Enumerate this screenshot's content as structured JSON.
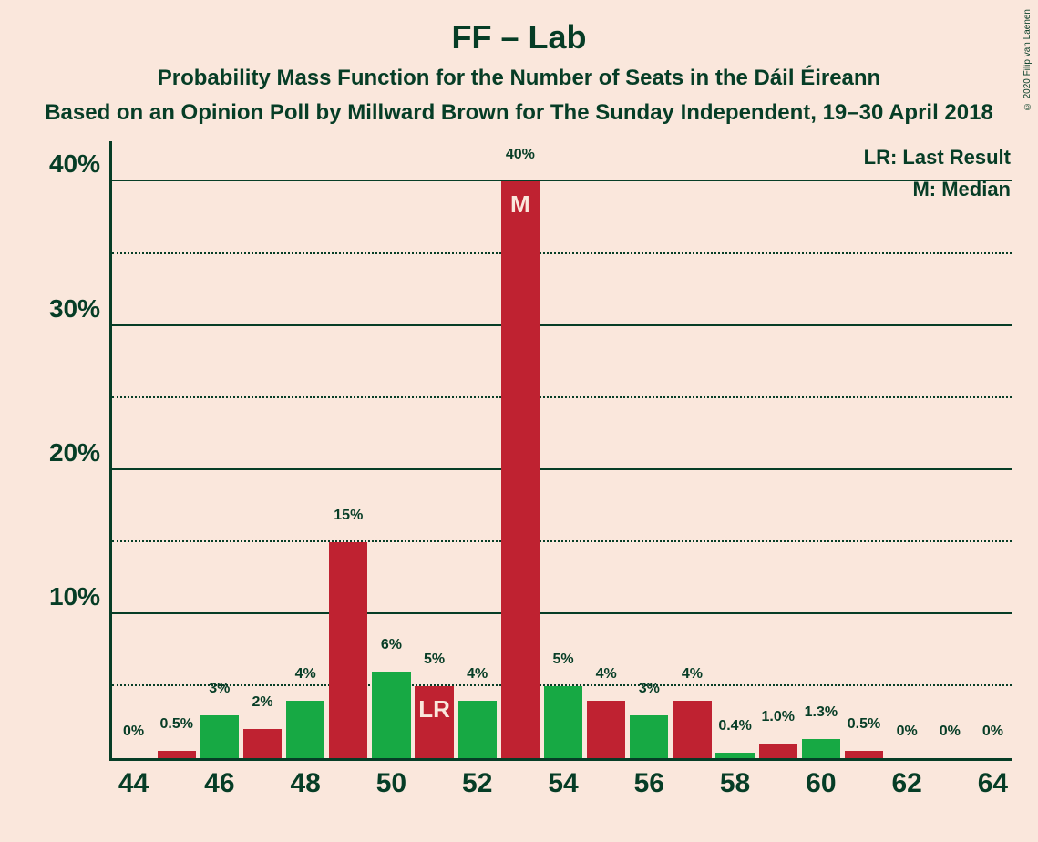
{
  "background_color": "#fae7dc",
  "text_color": "#063d26",
  "title": "FF – Lab",
  "subtitle": "Probability Mass Function for the Number of Seats in the Dáil Éireann",
  "source": "Based on an Opinion Poll by Millward Brown for The Sunday Independent, 19–30 April 2018",
  "credit": "© 2020 Filip van Laenen",
  "legend": {
    "lr": "LR: Last Result",
    "m": "M: Median"
  },
  "chart": {
    "type": "bar",
    "xlim": [
      43.5,
      64.5
    ],
    "ylim": [
      0,
      43
    ],
    "y_major_ticks": [
      10,
      20,
      30,
      40
    ],
    "y_minor_ticks": [
      5,
      15,
      25,
      35
    ],
    "axis_color": "#063d26",
    "grid_color": "#063d26",
    "bar_half_width": 0.45,
    "colors": {
      "green": "#17a944",
      "red": "#bf2231"
    },
    "label_color": "#063d26",
    "inlabel_color": "#fae7dc",
    "bars": [
      {
        "x": 44,
        "v": 0,
        "label": "0%",
        "color": "green"
      },
      {
        "x": 45,
        "v": 0.5,
        "label": "0.5%",
        "color": "red"
      },
      {
        "x": 46,
        "v": 3,
        "label": "3%",
        "color": "green"
      },
      {
        "x": 47,
        "v": 2,
        "label": "2%",
        "color": "red"
      },
      {
        "x": 48,
        "v": 4,
        "label": "4%",
        "color": "green"
      },
      {
        "x": 49,
        "v": 15,
        "label": "15%",
        "color": "red"
      },
      {
        "x": 50,
        "v": 6,
        "label": "6%",
        "color": "green"
      },
      {
        "x": 51,
        "v": 5,
        "label": "5%",
        "color": "red",
        "inlabel": "LR"
      },
      {
        "x": 52,
        "v": 4,
        "label": "4%",
        "color": "green"
      },
      {
        "x": 53,
        "v": 40,
        "label": "40%",
        "color": "red",
        "inlabel": "M"
      },
      {
        "x": 54,
        "v": 5,
        "label": "5%",
        "color": "green"
      },
      {
        "x": 55,
        "v": 4,
        "label": "4%",
        "color": "red"
      },
      {
        "x": 56,
        "v": 3,
        "label": "3%",
        "color": "green"
      },
      {
        "x": 57,
        "v": 4,
        "label": "4%",
        "color": "red"
      },
      {
        "x": 58,
        "v": 0.4,
        "label": "0.4%",
        "color": "green"
      },
      {
        "x": 59,
        "v": 1.0,
        "label": "1.0%",
        "color": "red"
      },
      {
        "x": 60,
        "v": 1.3,
        "label": "1.3%",
        "color": "green"
      },
      {
        "x": 61,
        "v": 0.5,
        "label": "0.5%",
        "color": "red"
      },
      {
        "x": 62,
        "v": 0,
        "label": "0%",
        "color": "green"
      },
      {
        "x": 63,
        "v": 0,
        "label": "0%",
        "color": "red"
      },
      {
        "x": 64,
        "v": 0,
        "label": "0%",
        "color": "green"
      }
    ],
    "x_ticks": [
      44,
      46,
      48,
      50,
      52,
      54,
      56,
      58,
      60,
      62,
      64
    ]
  }
}
